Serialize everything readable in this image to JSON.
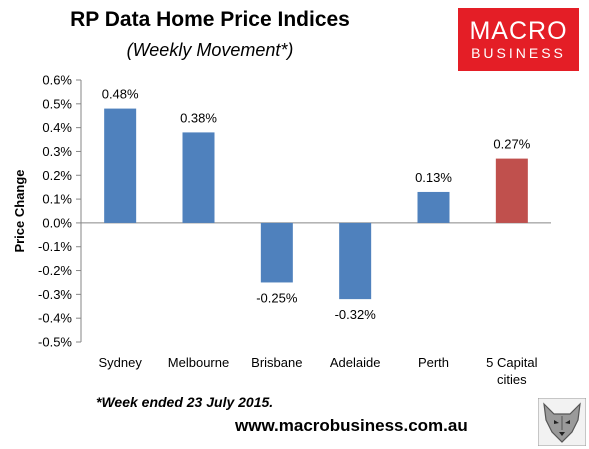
{
  "header": {
    "title": "RP Data Home Price Indices",
    "subtitle": "(Weekly Movement*)"
  },
  "logo": {
    "line1": "MACRO",
    "line2": "BUSINESS",
    "color": "#e41e26"
  },
  "footer": {
    "footnote": "*Week ended 23 July 2015.",
    "website": "www.macrobusiness.com.au",
    "mascot_icon": "wolf-icon"
  },
  "chart_data": {
    "type": "bar",
    "categories": [
      "Sydney",
      "Melbourne",
      "Brisbane",
      "Adelaide",
      "Perth",
      "5 Capital cities"
    ],
    "category_lines": [
      [
        "Sydney"
      ],
      [
        "Melbourne"
      ],
      [
        "Brisbane"
      ],
      [
        "Adelaide"
      ],
      [
        "Perth"
      ],
      [
        "5 Capital",
        "cities"
      ]
    ],
    "values": [
      0.48,
      0.38,
      -0.25,
      -0.32,
      0.13,
      0.27
    ],
    "data_labels": [
      "0.48%",
      "0.38%",
      "-0.25%",
      "-0.32%",
      "0.13%",
      "0.27%"
    ],
    "bar_colors": [
      "#4f81bd",
      "#4f81bd",
      "#4f81bd",
      "#4f81bd",
      "#4f81bd",
      "#c0504d"
    ],
    "title": "RP Data Home Price Indices",
    "subtitle": "(Weekly Movement*)",
    "xlabel": "",
    "ylabel": "Price Change",
    "ylim": [
      -0.5,
      0.6
    ],
    "yticks": [
      0.6,
      0.5,
      0.4,
      0.3,
      0.2,
      0.1,
      0.0,
      -0.1,
      -0.2,
      -0.3,
      -0.4,
      -0.5
    ],
    "ytick_labels": [
      "0.6%",
      "0.5%",
      "0.4%",
      "0.3%",
      "0.2%",
      "0.1%",
      "0.0%",
      "-0.1%",
      "-0.2%",
      "-0.3%",
      "-0.4%",
      "-0.5%"
    ],
    "grid": false,
    "legend": "none"
  }
}
